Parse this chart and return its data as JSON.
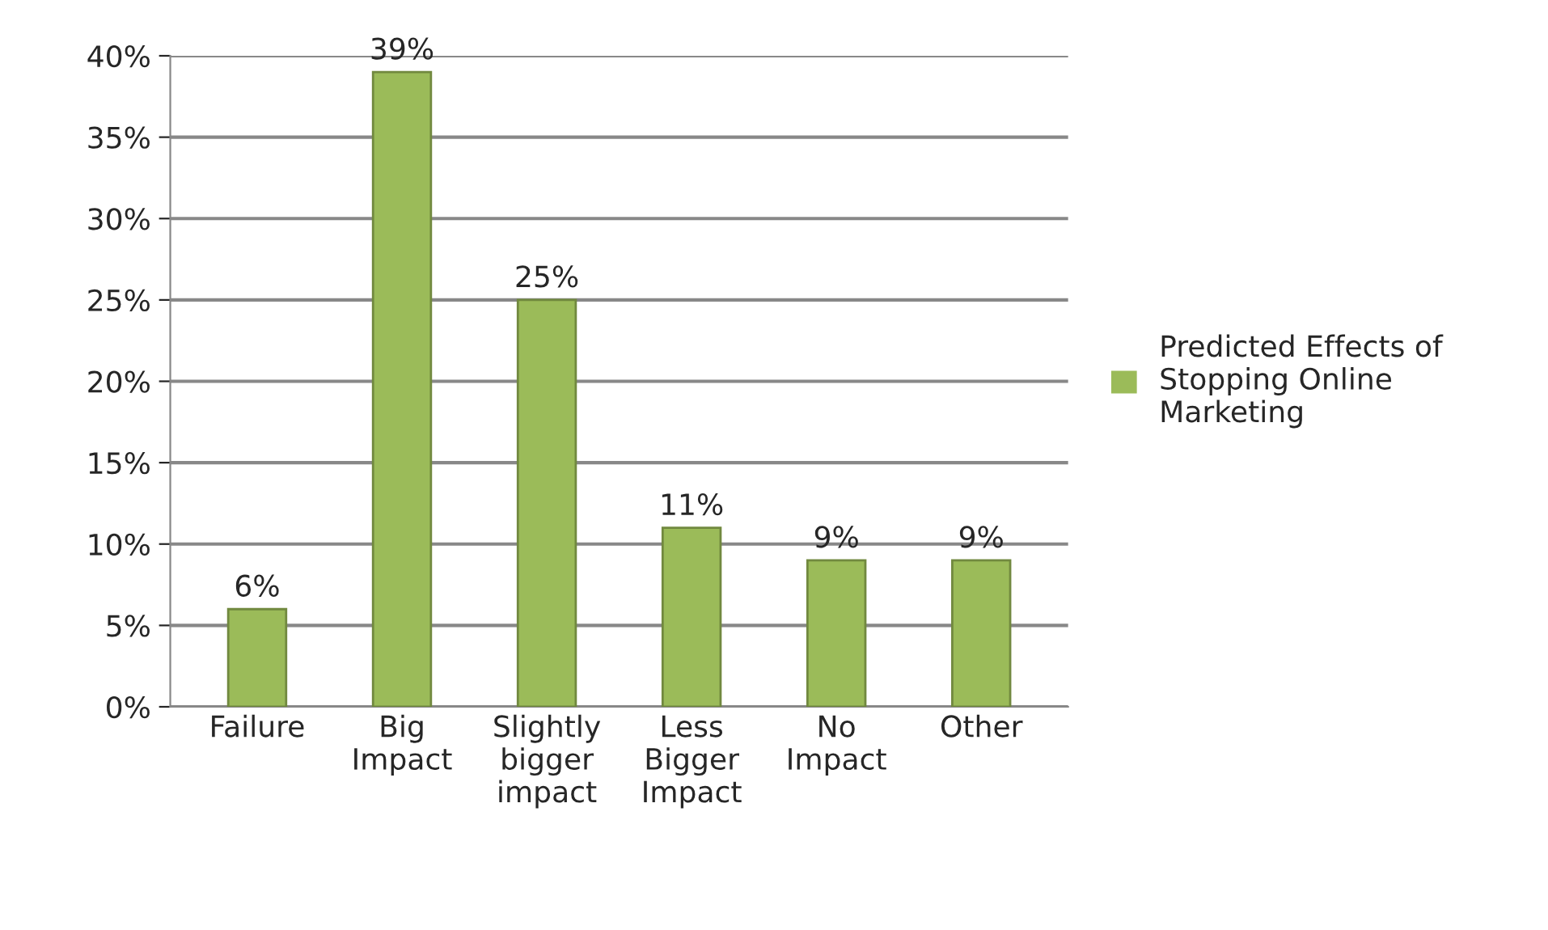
{
  "chart_data": {
    "type": "bar",
    "categories": [
      "Failure",
      "Big Impact",
      "Slightly bigger impact",
      "Less Bigger Impact",
      "No Impact",
      "Other"
    ],
    "series": [
      {
        "name": "Predicted Effects of Stopping Online Marketing",
        "color": "#9bbb59",
        "values": [
          6,
          39,
          25,
          11,
          9,
          9
        ],
        "value_labels": [
          "6%",
          "39%",
          "25%",
          "11%",
          "9%",
          "9%"
        ]
      }
    ],
    "ylim": [
      0,
      40
    ],
    "yticks": [
      {
        "value": 0,
        "label": "0%"
      },
      {
        "value": 5,
        "label": "5%"
      },
      {
        "value": 10,
        "label": "10%"
      },
      {
        "value": 15,
        "label": "15%"
      },
      {
        "value": 20,
        "label": "20%"
      },
      {
        "value": 25,
        "label": "25%"
      },
      {
        "value": 30,
        "label": "30%"
      },
      {
        "value": 35,
        "label": "35%"
      },
      {
        "value": 40,
        "label": "40%"
      }
    ],
    "grid": "y",
    "legend": "right"
  }
}
